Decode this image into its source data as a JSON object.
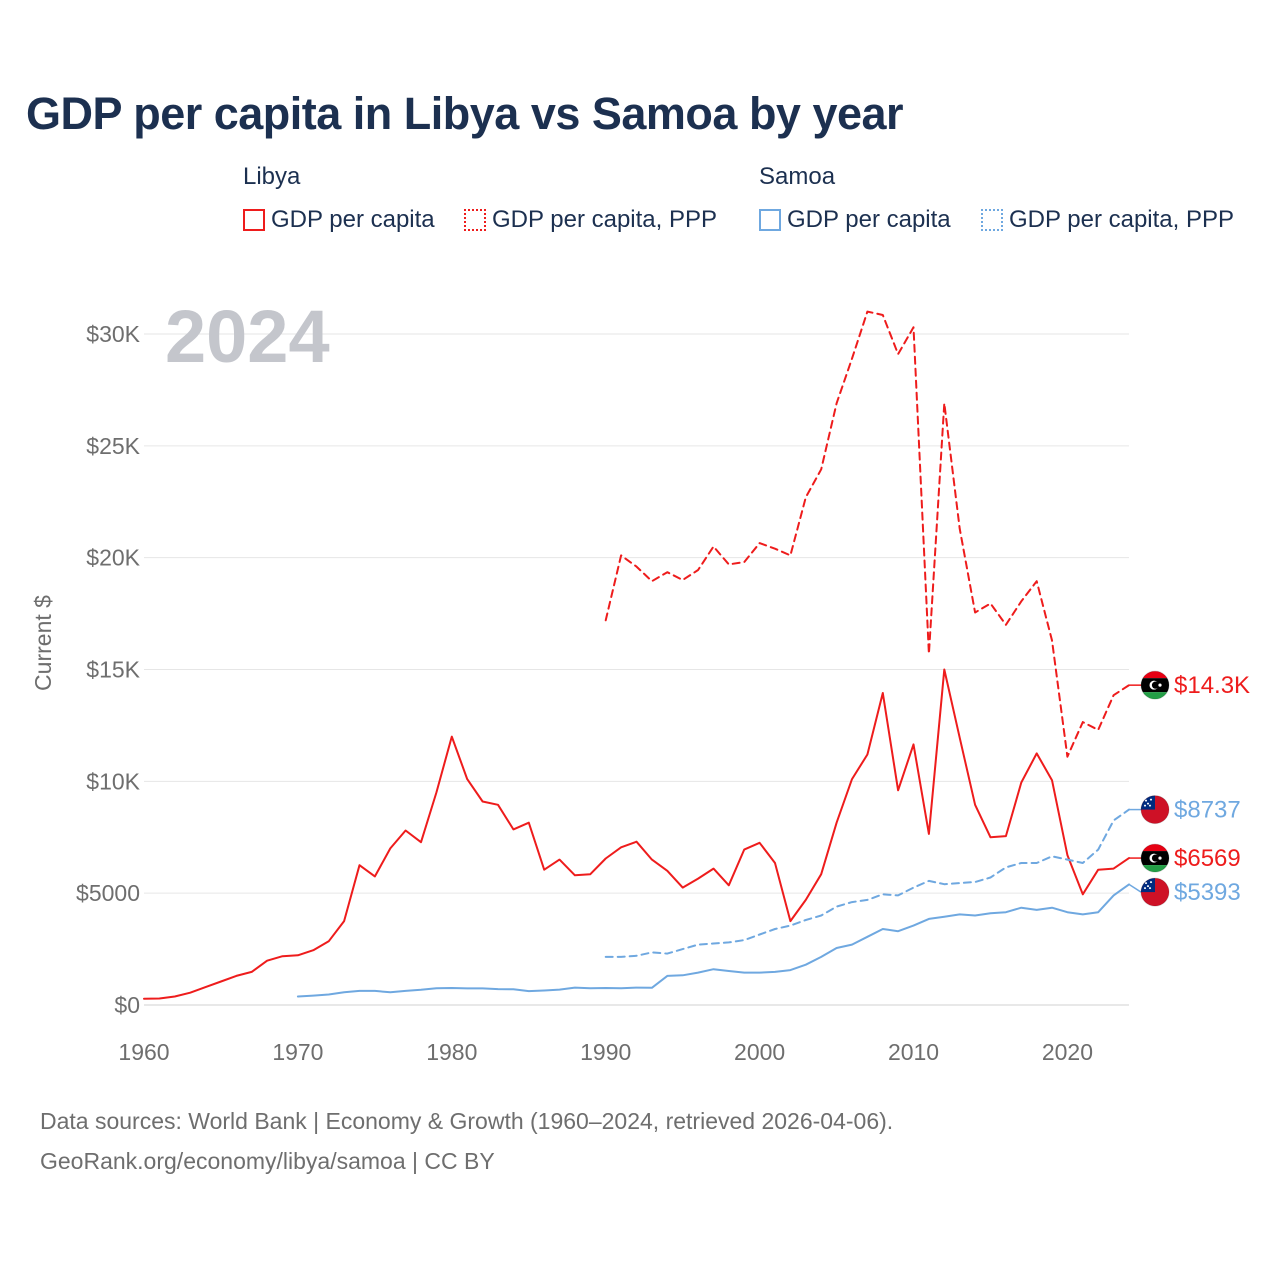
{
  "colors": {
    "libya": "#ee1c1c",
    "samoa": "#6fa8e0",
    "title": "#1c3050",
    "axis_text": "#6e6e6e",
    "grid": "#e6e6e6",
    "year_watermark": "#c4c6cc"
  },
  "legend": {
    "groups": [
      {
        "title": "Libya",
        "items": [
          {
            "label": "GDP per capita",
            "style": "solid",
            "color": "#ee1c1c"
          },
          {
            "label": "GDP per capita, PPP",
            "style": "dotted",
            "color": "#ee1c1c"
          }
        ]
      },
      {
        "title": "Samoa",
        "items": [
          {
            "label": "GDP per capita",
            "style": "solid",
            "color": "#6fa8e0"
          },
          {
            "label": "GDP per capita, PPP",
            "style": "dotted",
            "color": "#6fa8e0"
          }
        ]
      }
    ]
  },
  "footer": {
    "line1": "Data sources: World Bank | Economy & Growth (1960–2024, retrieved 2026-04-06).",
    "line2": "GeoRank.org/economy/libya/samoa | CC BY"
  },
  "chart_data": {
    "type": "line",
    "title": "GDP per capita in Libya vs Samoa by year",
    "year_label": "2024",
    "ylabel": "Current $",
    "xlabel": "",
    "xlim": [
      1960,
      2024
    ],
    "ylim": [
      0,
      32000
    ],
    "grid": true,
    "x_ticks": [
      1960,
      1970,
      1980,
      1990,
      2000,
      2010,
      2020
    ],
    "y_ticks": [
      {
        "value": 0,
        "label": "$0"
      },
      {
        "value": 5000,
        "label": "$5000"
      },
      {
        "value": 10000,
        "label": "$10K"
      },
      {
        "value": 15000,
        "label": "$15K"
      },
      {
        "value": 20000,
        "label": "$20K"
      },
      {
        "value": 25000,
        "label": "$25K"
      },
      {
        "value": 30000,
        "label": "$30K"
      }
    ],
    "series": [
      {
        "name": "Libya GDP per capita",
        "country": "Libya",
        "style": "solid",
        "color": "#ee1c1c",
        "end_label": "$6569",
        "x": [
          1960,
          1961,
          1962,
          1963,
          1964,
          1965,
          1966,
          1967,
          1968,
          1969,
          1970,
          1971,
          1972,
          1973,
          1974,
          1975,
          1976,
          1977,
          1978,
          1979,
          1980,
          1981,
          1982,
          1983,
          1984,
          1985,
          1986,
          1987,
          1988,
          1989,
          1990,
          1991,
          1992,
          1993,
          1994,
          1995,
          1996,
          1997,
          1998,
          1999,
          2000,
          2001,
          2002,
          2003,
          2004,
          2005,
          2006,
          2007,
          2008,
          2009,
          2010,
          2011,
          2012,
          2013,
          2014,
          2015,
          2016,
          2017,
          2018,
          2019,
          2020,
          2021,
          2022,
          2023,
          2024
        ],
        "values": [
          280,
          290,
          380,
          550,
          800,
          1050,
          1300,
          1480,
          1980,
          2180,
          2220,
          2450,
          2850,
          3750,
          6250,
          5750,
          7000,
          7800,
          7280,
          9500,
          12000,
          10100,
          9100,
          8950,
          7850,
          8150,
          6050,
          6500,
          5800,
          5850,
          6550,
          7050,
          7300,
          6500,
          6000,
          5250,
          5650,
          6100,
          5350,
          6950,
          7250,
          6350,
          3750,
          4700,
          5850,
          8150,
          10100,
          11200,
          13950,
          9600,
          11650,
          7650,
          15000,
          11950,
          8950,
          7500,
          7550,
          9950,
          11250,
          10050,
          6700,
          4950,
          6050,
          6100,
          6569
        ]
      },
      {
        "name": "Libya GDP per capita, PPP",
        "country": "Libya",
        "style": "dashed",
        "color": "#ee1c1c",
        "end_label": "$14.3K",
        "x": [
          1990,
          1991,
          1992,
          1993,
          1994,
          1995,
          1996,
          1997,
          1998,
          1999,
          2000,
          2001,
          2002,
          2003,
          2004,
          2005,
          2006,
          2007,
          2008,
          2009,
          2010,
          2011,
          2012,
          2013,
          2014,
          2015,
          2016,
          2017,
          2018,
          2019,
          2020,
          2021,
          2022,
          2023,
          2024
        ],
        "values": [
          17200,
          20100,
          19600,
          18950,
          19350,
          19000,
          19450,
          20500,
          19700,
          19800,
          20650,
          20400,
          20100,
          22700,
          23950,
          26900,
          28900,
          31000,
          30850,
          29100,
          30300,
          15700,
          26900,
          21300,
          17550,
          17950,
          17000,
          18050,
          18950,
          16300,
          11100,
          12650,
          12300,
          13850,
          14300
        ]
      },
      {
        "name": "Samoa GDP per capita",
        "country": "Samoa",
        "style": "solid",
        "color": "#6fa8e0",
        "end_label": "$5393",
        "x": [
          1970,
          1971,
          1972,
          1973,
          1974,
          1975,
          1976,
          1977,
          1978,
          1979,
          1980,
          1981,
          1982,
          1983,
          1984,
          1985,
          1986,
          1987,
          1988,
          1989,
          1990,
          1991,
          1992,
          1993,
          1994,
          1995,
          1996,
          1997,
          1998,
          1999,
          2000,
          2001,
          2002,
          2003,
          2004,
          2005,
          2006,
          2007,
          2008,
          2009,
          2010,
          2011,
          2012,
          2013,
          2014,
          2015,
          2016,
          2017,
          2018,
          2019,
          2020,
          2021,
          2022,
          2023,
          2024
        ],
        "values": [
          380,
          420,
          470,
          570,
          630,
          630,
          570,
          630,
          680,
          750,
          760,
          740,
          740,
          710,
          700,
          620,
          650,
          690,
          780,
          750,
          760,
          750,
          780,
          770,
          1300,
          1330,
          1450,
          1600,
          1520,
          1450,
          1450,
          1480,
          1560,
          1800,
          2150,
          2550,
          2700,
          3050,
          3400,
          3300,
          3550,
          3850,
          3950,
          4050,
          4000,
          4100,
          4150,
          4350,
          4250,
          4350,
          4150,
          4050,
          4150,
          4900,
          5393
        ]
      },
      {
        "name": "Samoa GDP per capita, PPP",
        "country": "Samoa",
        "style": "dashed",
        "color": "#6fa8e0",
        "end_label": "$8737",
        "x": [
          1990,
          1991,
          1992,
          1993,
          1994,
          1995,
          1996,
          1997,
          1998,
          1999,
          2000,
          2001,
          2002,
          2003,
          2004,
          2005,
          2006,
          2007,
          2008,
          2009,
          2010,
          2011,
          2012,
          2013,
          2014,
          2015,
          2016,
          2017,
          2018,
          2019,
          2020,
          2021,
          2022,
          2023,
          2024
        ],
        "values": [
          2150,
          2150,
          2200,
          2350,
          2300,
          2500,
          2700,
          2750,
          2800,
          2900,
          3150,
          3400,
          3550,
          3800,
          4000,
          4400,
          4600,
          4700,
          4950,
          4900,
          5250,
          5550,
          5400,
          5450,
          5500,
          5700,
          6150,
          6350,
          6350,
          6650,
          6500,
          6350,
          6950,
          8250,
          8737
        ]
      }
    ]
  }
}
